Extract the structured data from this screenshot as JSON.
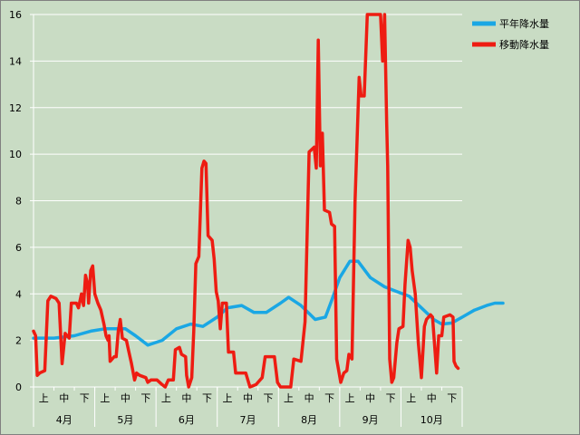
{
  "chart_data": {
    "type": "line",
    "ylim": [
      0,
      16
    ],
    "yticks": [
      0,
      2,
      4,
      6,
      8,
      10,
      12,
      14,
      16
    ],
    "grid": true,
    "legend_position": "top-right",
    "sub_ticks": [
      "上",
      "中",
      "下"
    ],
    "months": [
      "4月",
      "5月",
      "6月",
      "7月",
      "8月",
      "9月",
      "10月"
    ],
    "x_index_range": [
      0,
      21
    ],
    "series": [
      {
        "name": "平年降水量",
        "color": "#1aa7e4",
        "points": [
          [
            0.0,
            2.1
          ],
          [
            1.0,
            2.1
          ],
          [
            2.0,
            2.2
          ],
          [
            2.8,
            2.4
          ],
          [
            3.5,
            2.5
          ],
          [
            4.5,
            2.5
          ],
          [
            5.0,
            2.2
          ],
          [
            5.6,
            1.8
          ],
          [
            6.3,
            2.0
          ],
          [
            7.0,
            2.5
          ],
          [
            7.7,
            2.7
          ],
          [
            8.3,
            2.6
          ],
          [
            9.0,
            3.0
          ],
          [
            9.5,
            3.4
          ],
          [
            10.2,
            3.5
          ],
          [
            10.8,
            3.2
          ],
          [
            11.4,
            3.2
          ],
          [
            12.1,
            3.6
          ],
          [
            12.5,
            3.85
          ],
          [
            13.1,
            3.5
          ],
          [
            13.8,
            2.9
          ],
          [
            14.3,
            3.0
          ],
          [
            14.6,
            3.7
          ],
          [
            15.0,
            4.7
          ],
          [
            15.5,
            5.4
          ],
          [
            15.9,
            5.4
          ],
          [
            16.5,
            4.7
          ],
          [
            17.2,
            4.3
          ],
          [
            17.8,
            4.1
          ],
          [
            18.4,
            3.9
          ],
          [
            19.0,
            3.4
          ],
          [
            19.6,
            2.9
          ],
          [
            20.0,
            2.7
          ],
          [
            20.5,
            2.75
          ],
          [
            21.2,
            3.1
          ],
          [
            21.6,
            3.3
          ],
          [
            22.2,
            3.5
          ],
          [
            22.6,
            3.6
          ],
          [
            23.0,
            3.6
          ]
        ]
      },
      {
        "name": "移動降水量",
        "color": "#ee1c12",
        "points": [
          [
            0.0,
            2.4
          ],
          [
            0.1,
            2.2
          ],
          [
            0.18,
            0.5
          ],
          [
            0.3,
            0.6
          ],
          [
            0.55,
            0.7
          ],
          [
            0.7,
            3.7
          ],
          [
            0.85,
            3.9
          ],
          [
            1.1,
            3.8
          ],
          [
            1.25,
            3.6
          ],
          [
            1.4,
            1.0
          ],
          [
            1.55,
            2.3
          ],
          [
            1.75,
            2.1
          ],
          [
            1.85,
            3.6
          ],
          [
            2.1,
            3.6
          ],
          [
            2.2,
            3.4
          ],
          [
            2.35,
            4.0
          ],
          [
            2.45,
            3.5
          ],
          [
            2.55,
            4.8
          ],
          [
            2.65,
            4.4
          ],
          [
            2.7,
            3.6
          ],
          [
            2.8,
            5.0
          ],
          [
            2.9,
            5.2
          ],
          [
            3.0,
            4.0
          ],
          [
            3.15,
            3.6
          ],
          [
            3.3,
            3.3
          ],
          [
            3.45,
            2.7
          ],
          [
            3.55,
            2.2
          ],
          [
            3.65,
            2.0
          ],
          [
            3.7,
            2.2
          ],
          [
            3.75,
            1.1
          ],
          [
            3.95,
            1.3
          ],
          [
            4.05,
            1.3
          ],
          [
            4.15,
            2.4
          ],
          [
            4.25,
            2.9
          ],
          [
            4.35,
            2.1
          ],
          [
            4.55,
            2.0
          ],
          [
            4.65,
            1.6
          ],
          [
            4.8,
            1.0
          ],
          [
            4.95,
            0.3
          ],
          [
            5.05,
            0.6
          ],
          [
            5.2,
            0.5
          ],
          [
            5.5,
            0.4
          ],
          [
            5.6,
            0.2
          ],
          [
            5.75,
            0.3
          ],
          [
            6.05,
            0.3
          ],
          [
            6.3,
            0.1
          ],
          [
            6.45,
            0.0
          ],
          [
            6.6,
            0.3
          ],
          [
            6.85,
            0.3
          ],
          [
            6.95,
            1.6
          ],
          [
            7.15,
            1.7
          ],
          [
            7.25,
            1.4
          ],
          [
            7.45,
            1.3
          ],
          [
            7.5,
            0.5
          ],
          [
            7.6,
            0.0
          ],
          [
            7.75,
            0.4
          ],
          [
            7.85,
            2.4
          ],
          [
            7.95,
            5.3
          ],
          [
            8.1,
            5.6
          ],
          [
            8.25,
            9.4
          ],
          [
            8.35,
            9.7
          ],
          [
            8.45,
            9.6
          ],
          [
            8.55,
            6.5
          ],
          [
            8.75,
            6.3
          ],
          [
            8.85,
            5.5
          ],
          [
            8.95,
            4.1
          ],
          [
            9.05,
            3.7
          ],
          [
            9.15,
            2.5
          ],
          [
            9.25,
            3.6
          ],
          [
            9.45,
            3.6
          ],
          [
            9.55,
            1.5
          ],
          [
            9.8,
            1.5
          ],
          [
            9.9,
            0.6
          ],
          [
            10.4,
            0.6
          ],
          [
            10.6,
            0.0
          ],
          [
            10.9,
            0.1
          ],
          [
            11.2,
            0.4
          ],
          [
            11.35,
            1.3
          ],
          [
            11.8,
            1.3
          ],
          [
            11.95,
            0.2
          ],
          [
            12.1,
            0.0
          ],
          [
            12.6,
            0.0
          ],
          [
            12.75,
            1.2
          ],
          [
            13.1,
            1.1
          ],
          [
            13.3,
            2.8
          ],
          [
            13.5,
            10.1
          ],
          [
            13.75,
            10.3
          ],
          [
            13.85,
            9.4
          ],
          [
            13.95,
            14.9
          ],
          [
            14.05,
            9.5
          ],
          [
            14.15,
            10.9
          ],
          [
            14.25,
            7.6
          ],
          [
            14.5,
            7.5
          ],
          [
            14.6,
            7.0
          ],
          [
            14.75,
            6.9
          ],
          [
            14.85,
            1.2
          ],
          [
            15.05,
            0.2
          ],
          [
            15.2,
            0.6
          ],
          [
            15.35,
            0.7
          ],
          [
            15.45,
            1.4
          ],
          [
            15.6,
            1.2
          ],
          [
            15.75,
            8.0
          ],
          [
            15.95,
            13.3
          ],
          [
            16.05,
            12.5
          ],
          [
            16.2,
            12.5
          ],
          [
            16.35,
            16.0
          ],
          [
            16.45,
            16.0
          ],
          [
            16.8,
            16.0
          ],
          [
            17.0,
            16.0
          ],
          [
            17.1,
            14.0
          ],
          [
            17.2,
            16.0
          ],
          [
            17.3,
            11.3
          ],
          [
            17.35,
            9.5
          ],
          [
            17.45,
            1.2
          ],
          [
            17.55,
            0.2
          ],
          [
            17.65,
            0.4
          ],
          [
            17.8,
            1.9
          ],
          [
            17.9,
            2.5
          ],
          [
            18.1,
            2.6
          ],
          [
            18.2,
            4.4
          ],
          [
            18.35,
            6.3
          ],
          [
            18.45,
            6.0
          ],
          [
            18.55,
            5.0
          ],
          [
            18.7,
            4.0
          ],
          [
            18.85,
            1.9
          ],
          [
            19.0,
            0.4
          ],
          [
            19.15,
            2.6
          ],
          [
            19.25,
            2.9
          ],
          [
            19.45,
            3.1
          ],
          [
            19.55,
            3.0
          ],
          [
            19.75,
            0.6
          ],
          [
            19.85,
            2.2
          ],
          [
            20.0,
            2.2
          ],
          [
            20.1,
            3.0
          ],
          [
            20.4,
            3.1
          ],
          [
            20.55,
            3.0
          ],
          [
            20.6,
            1.1
          ],
          [
            20.7,
            0.9
          ],
          [
            20.8,
            0.8
          ]
        ]
      }
    ]
  }
}
